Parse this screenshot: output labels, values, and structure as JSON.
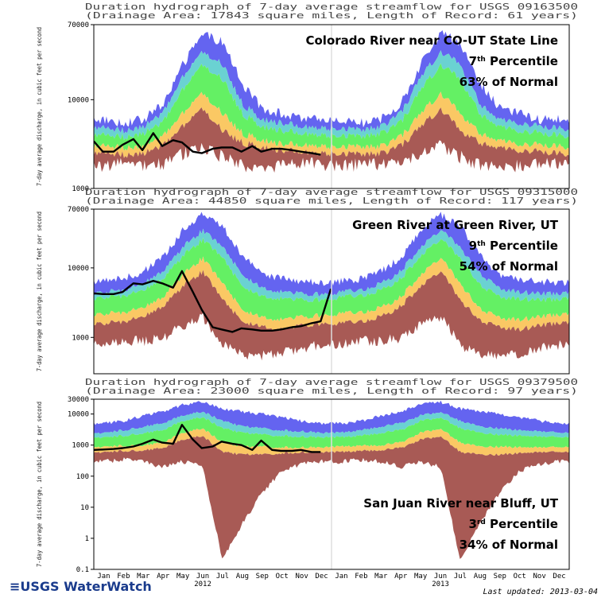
{
  "branding": {
    "logo_text": "≡USGS WaterWatch",
    "last_updated": "Last updated: 2013-03-04"
  },
  "x_axis": {
    "months": [
      "Jan",
      "Feb",
      "Mar",
      "Apr",
      "May",
      "Jun",
      "Jul",
      "Aug",
      "Sep",
      "Oct",
      "Nov",
      "Dec",
      "Jan",
      "Feb",
      "Mar",
      "Apr",
      "May",
      "Jun",
      "Jul",
      "Aug",
      "Sep",
      "Oct",
      "Nov",
      "Dec"
    ],
    "years": [
      "2012",
      "2013"
    ]
  },
  "colors": {
    "band_max": "#6464f0",
    "band_p90": "#6ad2d2",
    "band_p75": "#64f064",
    "band_p25": "#fac864",
    "band_p10": "#a85a55",
    "current": "#000000"
  },
  "chart_data": [
    {
      "type": "area",
      "title": "Duration hydrograph of 7-day average streamflow for USGS 09163500",
      "subtitle": "(Drainage Area: 17843 square miles, Length of Record: 61 years)",
      "ylabel": "7-day average discharge, in cubic feet per second",
      "y_scale": "log",
      "ylim": [
        1000,
        70000
      ],
      "y_ticks": [
        {
          "value": 70000,
          "label": "70000"
        },
        {
          "value": 10000,
          "label": "10000"
        },
        {
          "value": 1000,
          "label": "1000"
        }
      ],
      "annotation": {
        "line1": "Colorado River near CO-UT State Line",
        "line2_base": "7",
        "line2_sup": "th",
        "line2_rest": " Percentile",
        "line3": "63% of Normal"
      },
      "months": [
        "Jan",
        "Feb",
        "Mar",
        "Apr",
        "May",
        "Jun",
        "Jul",
        "Aug",
        "Sep",
        "Oct",
        "Nov",
        "Dec"
      ],
      "bands": {
        "max": [
          6000,
          5500,
          6000,
          9000,
          25000,
          55000,
          45000,
          15000,
          8000,
          7000,
          6000,
          6000
        ],
        "p90": [
          4800,
          4500,
          5000,
          7000,
          18000,
          35000,
          25000,
          9000,
          6000,
          5500,
          5000,
          4800
        ],
        "p75": [
          4000,
          3800,
          4200,
          5500,
          13000,
          25000,
          17000,
          7000,
          5000,
          4500,
          4200,
          4000
        ],
        "p25": [
          3000,
          2900,
          3000,
          3800,
          7000,
          12000,
          7000,
          4200,
          3500,
          3200,
          3100,
          3000
        ],
        "p10": [
          2500,
          2400,
          2500,
          3000,
          5000,
          8000,
          4500,
          3300,
          2900,
          2700,
          2600,
          2500
        ],
        "min": [
          1800,
          1900,
          1900,
          1900,
          2500,
          3000,
          2300,
          1800,
          1800,
          1800,
          1900,
          1900
        ]
      },
      "current_flow": {
        "name": "2012",
        "dates": [
          "2012-01-01",
          "2012-01-15",
          "2012-02-01",
          "2012-02-15",
          "2012-03-01",
          "2012-03-15",
          "2012-04-01",
          "2012-04-15",
          "2012-05-01",
          "2012-05-15",
          "2012-06-01",
          "2012-06-15",
          "2012-07-01",
          "2012-07-15",
          "2012-08-01",
          "2012-08-15",
          "2012-09-01",
          "2012-09-15",
          "2012-10-01",
          "2012-10-15",
          "2012-11-01",
          "2012-11-15",
          "2012-12-01",
          "2012-12-15"
        ],
        "values": [
          3400,
          2600,
          2600,
          3100,
          3600,
          2700,
          4200,
          3000,
          3500,
          3300,
          2600,
          2500,
          2800,
          2900,
          2900,
          2600,
          3000,
          2600,
          2800,
          2800,
          2700,
          2600,
          2500,
          2400
        ]
      }
    },
    {
      "type": "area",
      "title": "Duration hydrograph of 7-day average streamflow for USGS 09315000",
      "subtitle": "(Drainage Area: 44850 square miles, Length of Record: 117 years)",
      "ylabel": "7-day average discharge, in cubic feet per second",
      "y_scale": "log",
      "ylim": [
        300,
        70000
      ],
      "y_ticks": [
        {
          "value": 70000,
          "label": "70000"
        },
        {
          "value": 10000,
          "label": "10000"
        },
        {
          "value": 1000,
          "label": "1000"
        }
      ],
      "annotation": {
        "line1": "Green River at Green River, UT",
        "line2_base": "9",
        "line2_sup": "th",
        "line2_rest": " Percentile",
        "line3": "54% of Normal"
      },
      "months": [
        "Jan",
        "Feb",
        "Mar",
        "Apr",
        "May",
        "Jun",
        "Jul",
        "Aug",
        "Sep",
        "Oct",
        "Nov",
        "Dec"
      ],
      "bands": {
        "max": [
          6500,
          7000,
          9000,
          14000,
          35000,
          60000,
          40000,
          15000,
          8000,
          7000,
          6500,
          6000
        ],
        "p90": [
          4500,
          4800,
          6000,
          9000,
          20000,
          35000,
          20000,
          8000,
          5000,
          4500,
          4300,
          4200
        ],
        "p75": [
          3800,
          4000,
          4800,
          7000,
          15000,
          26000,
          14000,
          5500,
          3800,
          3600,
          3500,
          3500
        ],
        "p25": [
          2200,
          2300,
          2700,
          3800,
          8000,
          14000,
          6000,
          2500,
          1900,
          1800,
          2000,
          2100
        ],
        "p10": [
          1600,
          1700,
          2000,
          2800,
          5500,
          9000,
          3500,
          1700,
          1400,
          1300,
          1500,
          1600
        ],
        "min": [
          800,
          900,
          900,
          1000,
          1500,
          2000,
          800,
          550,
          550,
          600,
          700,
          800
        ]
      },
      "current_flow": {
        "name": "2012",
        "dates": [
          "2012-01-01",
          "2012-01-15",
          "2012-02-01",
          "2012-02-15",
          "2012-03-01",
          "2012-03-15",
          "2012-04-01",
          "2012-04-15",
          "2012-05-01",
          "2012-05-15",
          "2012-06-01",
          "2012-06-15",
          "2012-07-01",
          "2012-07-15",
          "2012-08-01",
          "2012-08-15",
          "2012-09-01",
          "2012-09-15",
          "2012-10-01",
          "2012-10-15",
          "2012-11-01",
          "2012-11-15",
          "2012-12-01",
          "2012-12-15",
          "2012-12-31"
        ],
        "values": [
          4300,
          4200,
          4200,
          4500,
          6000,
          5800,
          6500,
          6000,
          5200,
          9000,
          4500,
          2500,
          1400,
          1300,
          1200,
          1350,
          1300,
          1250,
          1250,
          1300,
          1400,
          1450,
          1600,
          1700,
          5000
        ]
      }
    },
    {
      "type": "area",
      "title": "Duration hydrograph of 7-day average streamflow for USGS 09379500",
      "subtitle": "(Drainage Area: 23000 square miles, Length of Record: 97 years)",
      "ylabel": "7-day average discharge, in cubic feet per second",
      "y_scale": "log",
      "ylim": [
        0.1,
        30000
      ],
      "y_ticks": [
        {
          "value": 30000,
          "label": "30000"
        },
        {
          "value": 10000,
          "label": "10000"
        },
        {
          "value": 1000,
          "label": "1000"
        },
        {
          "value": 100,
          "label": "100"
        },
        {
          "value": 10,
          "label": "10"
        },
        {
          "value": 1,
          "label": "1"
        },
        {
          "value": 0.1,
          "label": "0.1"
        }
      ],
      "annotation": {
        "line1": "San Juan River near Bluff, UT",
        "line2_base": "3",
        "line2_sup": "rd",
        "line2_rest": " Percentile",
        "line3": "34% of Normal"
      },
      "months": [
        "Jan",
        "Feb",
        "Mar",
        "Apr",
        "May",
        "Jun",
        "Jul",
        "Aug",
        "Sep",
        "Oct",
        "Nov",
        "Dec"
      ],
      "bands": {
        "max": [
          5000,
          6000,
          9000,
          12000,
          20000,
          25000,
          15000,
          12000,
          10000,
          8000,
          6000,
          5000
        ],
        "p90": [
          2500,
          3000,
          4000,
          5000,
          9000,
          12000,
          6000,
          4000,
          3500,
          3000,
          2800,
          2500
        ],
        "p75": [
          1800,
          2000,
          2500,
          3000,
          6000,
          8000,
          3500,
          2500,
          2200,
          2000,
          1900,
          1800
        ],
        "p25": [
          900,
          950,
          1000,
          1200,
          2500,
          3500,
          1200,
          900,
          900,
          850,
          850,
          850
        ],
        "p10": [
          600,
          650,
          700,
          800,
          1500,
          2000,
          600,
          500,
          500,
          550,
          600,
          600
        ],
        "min": [
          300,
          350,
          300,
          200,
          300,
          200,
          0.2,
          3,
          30,
          150,
          250,
          300
        ]
      },
      "current_flow": {
        "name": "2012",
        "dates": [
          "2012-01-01",
          "2012-01-15",
          "2012-02-01",
          "2012-02-15",
          "2012-03-01",
          "2012-03-15",
          "2012-04-01",
          "2012-04-15",
          "2012-05-01",
          "2012-05-15",
          "2012-06-01",
          "2012-06-15",
          "2012-07-01",
          "2012-07-15",
          "2012-08-01",
          "2012-08-15",
          "2012-09-01",
          "2012-09-15",
          "2012-10-01",
          "2012-10-15",
          "2012-11-01",
          "2012-11-15",
          "2012-12-01",
          "2012-12-15"
        ],
        "values": [
          700,
          720,
          750,
          800,
          900,
          1100,
          1500,
          1200,
          1100,
          4500,
          1500,
          800,
          900,
          1300,
          1100,
          1000,
          700,
          1400,
          700,
          650,
          650,
          700,
          600,
          600
        ]
      }
    }
  ]
}
